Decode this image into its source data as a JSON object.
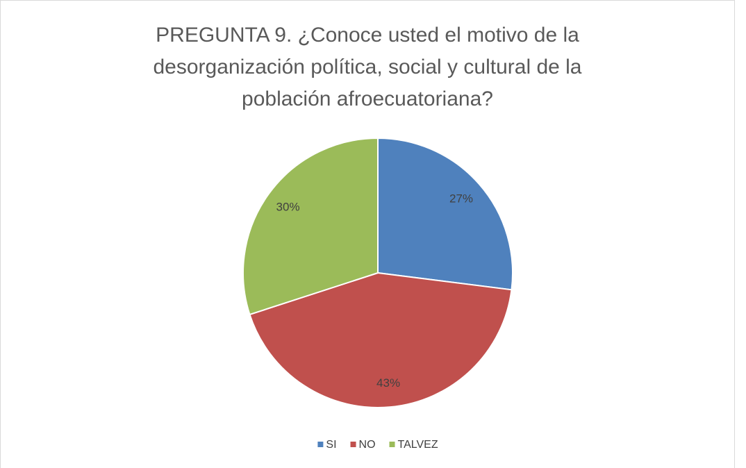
{
  "chart_data": {
    "type": "pie",
    "title": "PREGUNTA 9. ¿Conoce usted el motivo de la\ndesorganización política, social y cultural de la\npoblación afroecuatoriana?",
    "categories": [
      "SI",
      "NO",
      "TALVEZ"
    ],
    "values": [
      27,
      43,
      30
    ],
    "value_labels": [
      "27%",
      "43%",
      "30%"
    ],
    "colors": [
      "#4f81bd",
      "#c0504d",
      "#9bbb59"
    ],
    "legend": "bottom"
  }
}
